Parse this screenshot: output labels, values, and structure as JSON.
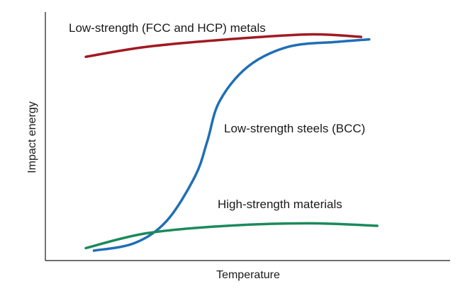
{
  "chart_data": {
    "type": "line",
    "title": "",
    "xlabel": "Temperature",
    "ylabel": "Impact energy",
    "x_ticks": [],
    "y_ticks": [],
    "grid": false,
    "legend": "none",
    "series": [
      {
        "name": "Low-strength (FCC and HCP) metals",
        "color": "#a11a22",
        "points": [
          [
            0.1,
            0.82
          ],
          [
            0.25,
            0.86
          ],
          [
            0.45,
            0.89
          ],
          [
            0.65,
            0.91
          ],
          [
            0.78,
            0.9
          ]
        ]
      },
      {
        "name": "Low-strength steels (BCC)",
        "color": "#1f6fb5",
        "points": [
          [
            0.12,
            0.04
          ],
          [
            0.22,
            0.07
          ],
          [
            0.3,
            0.16
          ],
          [
            0.37,
            0.34
          ],
          [
            0.4,
            0.48
          ],
          [
            0.43,
            0.64
          ],
          [
            0.5,
            0.78
          ],
          [
            0.6,
            0.86
          ],
          [
            0.72,
            0.88
          ],
          [
            0.8,
            0.89
          ]
        ]
      },
      {
        "name": "High-strength materials",
        "color": "#1b8a5a",
        "points": [
          [
            0.1,
            0.05
          ],
          [
            0.25,
            0.11
          ],
          [
            0.45,
            0.14
          ],
          [
            0.65,
            0.15
          ],
          [
            0.82,
            0.14
          ]
        ]
      }
    ]
  }
}
